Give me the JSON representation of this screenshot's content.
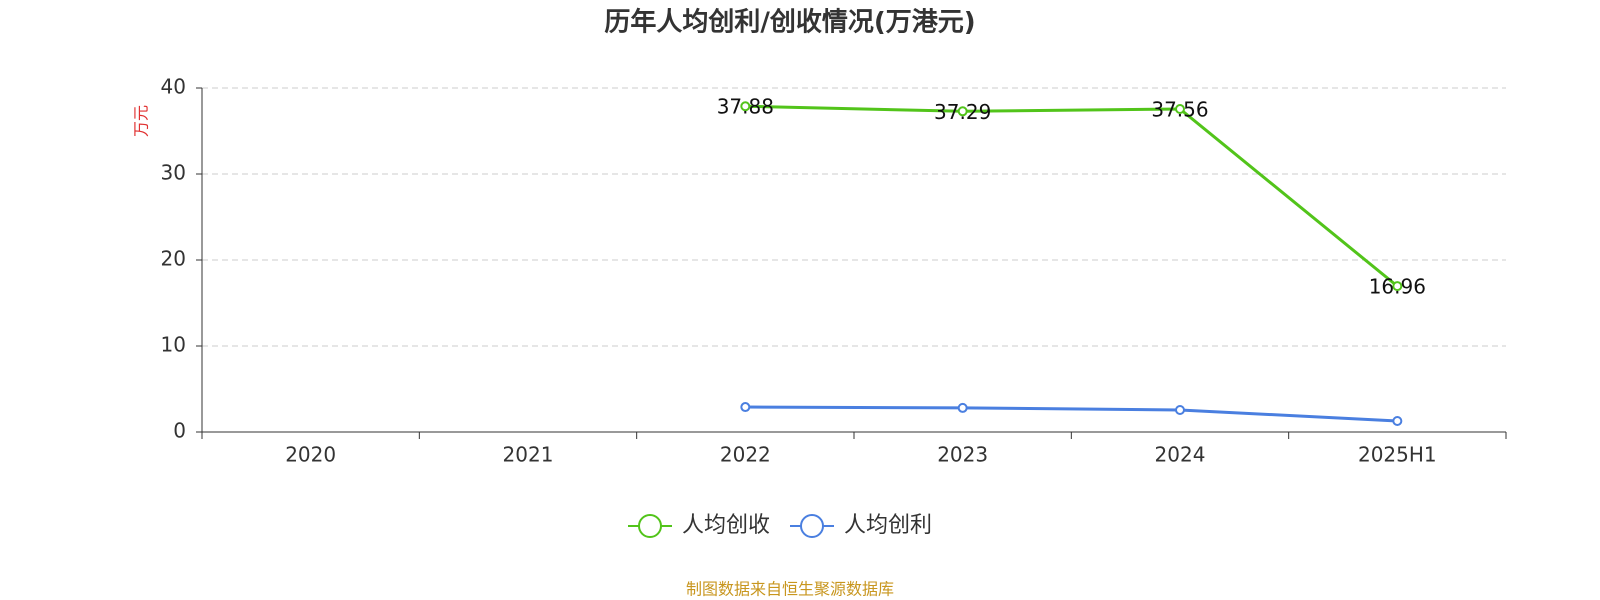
{
  "chart_data": {
    "type": "line",
    "title": "历年人均创利/创收情况(万港元)",
    "y_axis_label": "万元",
    "categories": [
      "2020",
      "2021",
      "2022",
      "2023",
      "2024",
      "2025H1"
    ],
    "series": [
      {
        "name": "人均创收",
        "color": "#52c41a",
        "values": [
          null,
          null,
          37.88,
          37.29,
          37.56,
          16.96
        ],
        "data_labels": true
      },
      {
        "name": "人均创利",
        "color": "#4a7fe0",
        "values": [
          null,
          null,
          2.9,
          2.8,
          2.56,
          1.28
        ],
        "data_labels": false
      }
    ],
    "ylim": [
      0,
      40
    ],
    "yticks": [
      0,
      10,
      20,
      30,
      40
    ],
    "grid": true,
    "legend": "bottom",
    "source": "制图数据来自恒生聚源数据库"
  }
}
